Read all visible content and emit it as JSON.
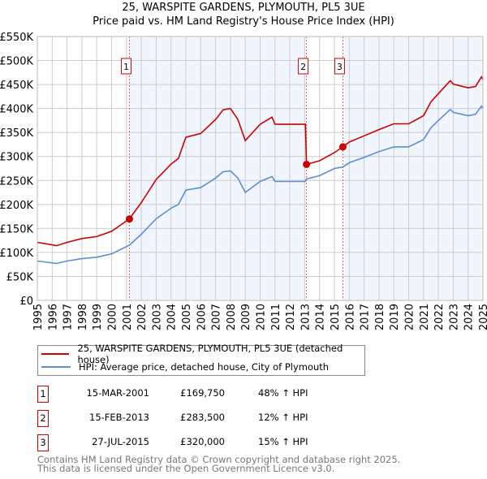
{
  "chart_data": {
    "type": "line",
    "title": "25, WARSPITE GARDENS, PLYMOUTH, PL5 3UE",
    "subtitle": "Price paid vs. HM Land Registry's House Price Index (HPI)",
    "xlim": [
      1995,
      2025
    ],
    "ylim": [
      0,
      550000
    ],
    "yticks": [
      0,
      50000,
      100000,
      150000,
      200000,
      250000,
      300000,
      350000,
      400000,
      450000,
      500000,
      550000
    ],
    "ytick_labels": [
      "£0",
      "£50K",
      "£100K",
      "£150K",
      "£200K",
      "£250K",
      "£300K",
      "£350K",
      "£400K",
      "£450K",
      "£500K",
      "£550K"
    ],
    "xtick_labels": [
      "1995",
      "1996",
      "1997",
      "1998",
      "1999",
      "2000",
      "2001",
      "2002",
      "2003",
      "2004",
      "2005",
      "2006",
      "2007",
      "2008",
      "2009",
      "2010",
      "2011",
      "2012",
      "2013",
      "2014",
      "2015",
      "2016",
      "2017",
      "2018",
      "2019",
      "2020",
      "2021",
      "2022",
      "2023",
      "2024",
      "2025"
    ],
    "grid": true,
    "x": [
      1995,
      1996.3,
      1997,
      1998,
      1999,
      2000,
      2001.2,
      2002,
      2003,
      2004,
      2004.5,
      2005,
      2006,
      2007,
      2007.5,
      2008,
      2008.5,
      2009,
      2010,
      2010.8,
      2011,
      2012,
      2013.05,
      2013.12,
      2014,
      2015,
      2015.57,
      2016,
      2017,
      2018,
      2019,
      2020,
      2021,
      2021.5,
      2022,
      2022.8,
      2023,
      2024,
      2024.5,
      2024.9,
      2025
    ],
    "series": [
      {
        "name": "25, WARSPITE GARDENS, PLYMOUTH, PL5 3UE (detached house)",
        "color": "#cc0000",
        "values": [
          121,
          114,
          121,
          129,
          133,
          144,
          170,
          204,
          252,
          284,
          296,
          340,
          348,
          377,
          397,
          400,
          377,
          333,
          367,
          382,
          367,
          367,
          367,
          283.5,
          291,
          308,
          320,
          330,
          343,
          356,
          368,
          368,
          385,
          414,
          431,
          458,
          451,
          443,
          446,
          466,
          460
        ]
      },
      {
        "name": "HPI: Average price, detached house, City of Plymouth",
        "color": "#5b8fd4",
        "values": [
          82,
          77,
          82,
          87,
          90,
          97,
          115,
          138,
          170,
          192,
          200,
          230,
          235,
          255,
          268,
          270,
          255,
          225,
          248,
          258,
          248,
          248,
          248,
          253,
          260,
          275,
          278,
          287,
          298,
          310,
          320,
          320,
          335,
          360,
          375,
          398,
          392,
          385,
          388,
          405,
          400
        ]
      }
    ],
    "value_unit": "thousands GBP",
    "sales": [
      {
        "label": "1",
        "x": 2001.2,
        "value": 169.75,
        "date": "15-MAR-2001",
        "price": "£169,750",
        "hpi": "48% ↑ HPI"
      },
      {
        "label": "2",
        "x": 2013.12,
        "value": 283.5,
        "date": "15-FEB-2013",
        "price": "£283,500",
        "hpi": "12% ↑ HPI"
      },
      {
        "label": "3",
        "x": 2015.57,
        "value": 320,
        "date": "27-JUL-2015",
        "price": "£320,000",
        "hpi": "15% ↑ HPI"
      }
    ],
    "legend_placement": "bottom"
  },
  "footer": {
    "line1": "Contains HM Land Registry data © Crown copyright and database right 2025.",
    "line2": "This data is licensed under the Open Government Licence v3.0."
  }
}
